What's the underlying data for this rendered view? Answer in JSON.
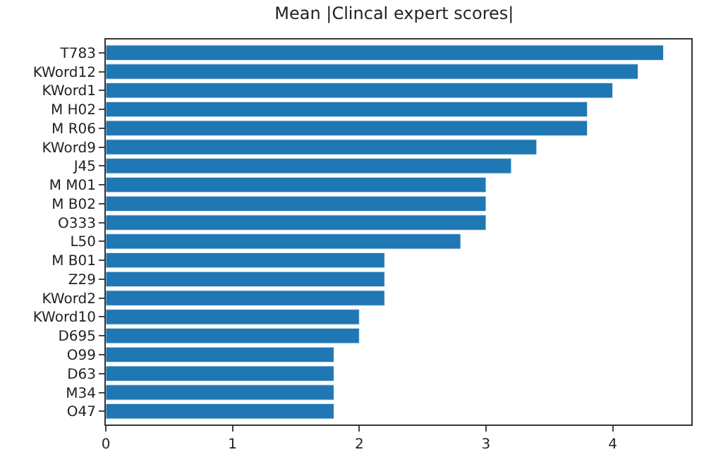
{
  "chart_data": {
    "type": "bar",
    "orientation": "horizontal",
    "title": "Mean |Clincal expert scores|",
    "categories": [
      "T783",
      "KWord12",
      "KWord1",
      "M H02",
      "M R06",
      "KWord9",
      "J45",
      "M M01",
      "M B02",
      "O333",
      "L50",
      "M B01",
      "Z29",
      "KWord2",
      "KWord10",
      "D695",
      "O99",
      "D63",
      "M34",
      "O47"
    ],
    "values": [
      4.4,
      4.2,
      4.0,
      3.8,
      3.8,
      3.4,
      3.2,
      3.0,
      3.0,
      3.0,
      2.8,
      2.2,
      2.2,
      2.2,
      2.0,
      2.0,
      1.8,
      1.8,
      1.8,
      1.8
    ],
    "color": "#1f77b4",
    "xlim": [
      0,
      4.62
    ],
    "xticks": [
      0,
      1,
      2,
      3,
      4
    ]
  }
}
